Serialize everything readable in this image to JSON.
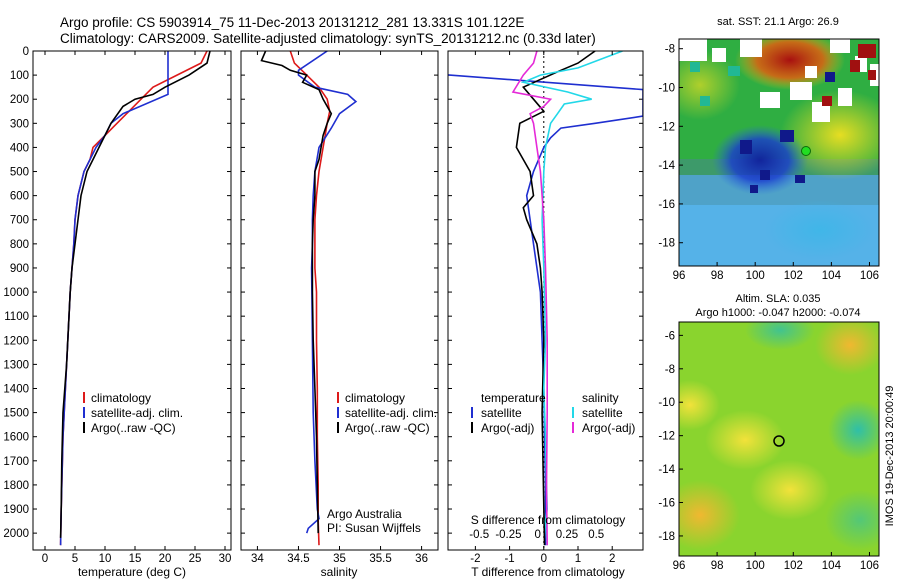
{
  "header": {
    "line1": "Argo profile: CS 5903914_75 11-Dec-2013 20131212_281 13.331S 101.122E",
    "line2": "Climatology: CARS2009. Satellite-adjusted climatology: synTS_20131212.nc (0.33d later)"
  },
  "chart_data": [
    {
      "type": "line",
      "xlabel": "temperature (deg C)",
      "xlim": [
        -2,
        31
      ],
      "ylim": [
        0,
        2070
      ],
      "xticks": [
        "0",
        "5",
        "10",
        "15",
        "20",
        "25",
        "30"
      ],
      "xtick_values": [
        0,
        5,
        10,
        15,
        20,
        25,
        30
      ],
      "yticks": [
        "0",
        "100",
        "200",
        "300",
        "400",
        "500",
        "600",
        "700",
        "800",
        "900",
        "1000",
        "1100",
        "1200",
        "1300",
        "1400",
        "1500",
        "1600",
        "1700",
        "1800",
        "1900",
        "2000"
      ],
      "ytick_values": [
        0,
        100,
        200,
        300,
        400,
        500,
        600,
        700,
        800,
        900,
        1000,
        1100,
        1200,
        1300,
        1400,
        1500,
        1600,
        1700,
        1800,
        1900,
        2000
      ],
      "legend": [
        "climatology",
        "satellite-adj. clim.",
        "Argo(..raw -QC)"
      ],
      "series": [
        {
          "name": "climatology",
          "color": "#dd1a1a",
          "x": [
            27,
            26,
            22,
            18,
            16,
            14,
            12,
            10,
            8,
            7.5,
            6.5,
            6,
            5.5,
            5,
            4.8,
            4.5,
            4.2,
            4,
            3.8,
            3.6,
            3.4,
            3.2,
            3,
            2.9,
            2.8,
            2.7,
            2.6
          ],
          "y": [
            0,
            50,
            100,
            150,
            200,
            250,
            300,
            350,
            400,
            450,
            500,
            550,
            600,
            700,
            800,
            900,
            1000,
            1100,
            1200,
            1300,
            1400,
            1500,
            1600,
            1700,
            1800,
            1900,
            2050
          ]
        },
        {
          "name": "satellite-adj. clim.",
          "color": "#1f2fd0",
          "x": [
            20.5,
            20.5,
            20.5,
            13,
            11,
            10,
            8.5,
            7.5,
            6.5,
            6,
            5.5,
            5,
            4.8,
            4.5,
            4.2,
            4,
            3.8,
            3.6,
            3.4,
            3.2,
            3,
            2.9,
            2.8,
            2.7,
            2.6
          ],
          "y": [
            0,
            100,
            180,
            260,
            300,
            350,
            400,
            450,
            500,
            550,
            600,
            700,
            800,
            900,
            1000,
            1100,
            1200,
            1300,
            1400,
            1500,
            1600,
            1700,
            1800,
            1900,
            2050
          ]
        },
        {
          "name": "Argo(..raw -QC)",
          "color": "#000000",
          "x": [
            27.5,
            27,
            24,
            20,
            18,
            15,
            13,
            11,
            9,
            8,
            7,
            6.5,
            6,
            5.5,
            5,
            4.5,
            4.2,
            4,
            3.8,
            3.6,
            3.3,
            3,
            2.8,
            2.7,
            2.6
          ],
          "y": [
            0,
            50,
            100,
            150,
            180,
            200,
            230,
            300,
            400,
            450,
            500,
            550,
            600,
            700,
            800,
            900,
            1000,
            1100,
            1200,
            1300,
            1400,
            1500,
            1700,
            1900,
            2020
          ]
        }
      ]
    },
    {
      "type": "line",
      "xlabel": "salinity",
      "xlim": [
        33.8,
        36.2
      ],
      "ylim": [
        0,
        2070
      ],
      "xticks": [
        "34",
        "34.5",
        "35",
        "35.5",
        "36"
      ],
      "xtick_values": [
        34,
        34.5,
        35,
        35.5,
        36
      ],
      "legend": [
        "climatology",
        "satellite-adj. clim.",
        "Argo(..raw -QC)"
      ],
      "annotation": [
        "Argo Australia",
        "PI: Susan Wijffels"
      ],
      "series": [
        {
          "name": "climatology",
          "color": "#dd1a1a",
          "x": [
            34.4,
            34.45,
            34.6,
            34.75,
            34.85,
            34.88,
            34.85,
            34.8,
            34.75,
            34.72,
            34.7,
            34.7,
            34.7,
            34.72,
            34.72,
            34.73,
            34.73,
            34.74,
            34.74,
            34.75
          ],
          "y": [
            0,
            50,
            100,
            150,
            200,
            250,
            300,
            400,
            500,
            600,
            700,
            800,
            900,
            1000,
            1200,
            1400,
            1600,
            1800,
            1950,
            2050
          ]
        },
        {
          "name": "satellite-adj. clim.",
          "color": "#1f2fd0",
          "x": [
            34.85,
            34.5,
            34.5,
            34.7,
            35.1,
            35.2,
            35.0,
            34.9,
            34.75,
            34.7,
            34.68,
            34.67,
            34.67,
            34.66,
            34.67,
            34.68,
            34.7,
            34.73,
            34.75,
            34.62,
            34.6
          ],
          "y": [
            0,
            80,
            100,
            150,
            180,
            210,
            260,
            320,
            400,
            500,
            600,
            700,
            800,
            900,
            1200,
            1500,
            1700,
            1900,
            1940,
            1980,
            2000
          ]
        },
        {
          "name": "Argo(..raw -QC)",
          "color": "#000000",
          "x": [
            34.1,
            34.05,
            34.3,
            34.4,
            34.6,
            34.55,
            34.75,
            34.8,
            34.9,
            34.85,
            34.8,
            34.75,
            34.7,
            34.7,
            34.68,
            34.67,
            34.67,
            34.68,
            34.7,
            34.72,
            34.73,
            34.74
          ],
          "y": [
            0,
            40,
            60,
            80,
            100,
            130,
            160,
            200,
            260,
            300,
            350,
            450,
            500,
            600,
            700,
            800,
            1000,
            1200,
            1400,
            1600,
            1800,
            2000
          ]
        }
      ]
    },
    {
      "type": "line",
      "xlabel": "T difference from climatology",
      "x2label": "S difference from climatology",
      "xlim": [
        -2.8,
        2.9
      ],
      "ylim": [
        0,
        2070
      ],
      "xticks": [
        "-2",
        "-1",
        "0",
        "1",
        "2"
      ],
      "xtick_values": [
        -2,
        -1,
        0,
        1,
        2
      ],
      "x2ticks": [
        "-0.5",
        "-0.25",
        "0",
        "0.25",
        "0.5"
      ],
      "x2tick_values": [
        -0.5,
        -0.25,
        0,
        0.25,
        0.5
      ],
      "legend_left_title": "temperature",
      "legend_right_title": "salinity",
      "legend_left": [
        "satellite",
        "Argo(-adj)"
      ],
      "legend_right": [
        "satellite",
        "Argo(-adj)"
      ],
      "series": [
        {
          "name": "satellite",
          "group": "temperature",
          "color": "#1f2fd0",
          "x": [
            -6.5,
            2.9,
            2.9,
            1.5,
            0.5,
            0.2,
            0,
            -0.3,
            -0.5,
            -0.4,
            -0.3,
            -0.1,
            0,
            0.05,
            0.05
          ],
          "y": [
            60,
            160,
            270,
            300,
            320,
            360,
            400,
            500,
            600,
            700,
            800,
            1000,
            1400,
            1800,
            2050
          ]
        },
        {
          "name": "Argo(-adj)",
          "group": "temperature",
          "color": "#000000",
          "x": [
            1.5,
            1,
            0.5,
            -0.6,
            -0.3,
            0,
            -0.7,
            -0.8,
            -0.4,
            -0.3,
            -0.6,
            -0.5,
            -0.2,
            -0.1,
            -0.05,
            0,
            -0.05,
            0.02
          ],
          "y": [
            0,
            50,
            80,
            150,
            200,
            250,
            300,
            400,
            500,
            600,
            650,
            700,
            800,
            900,
            1000,
            1200,
            1500,
            2050
          ]
        },
        {
          "name": "satellite",
          "group": "salinity",
          "color": "#22d8e8",
          "x": [
            2.3,
            1,
            -0.1,
            -0.6,
            0.7,
            1.4,
            0.6,
            0.4,
            0.2,
            0.05,
            0,
            -0.05,
            0,
            0.05,
            0,
            0.05,
            0.08,
            0.1,
            0.05,
            0.1
          ],
          "y": [
            0,
            70,
            100,
            130,
            170,
            200,
            220,
            260,
            300,
            400,
            500,
            700,
            900,
            1200,
            1400,
            1600,
            1800,
            1900,
            1950,
            2050
          ]
        },
        {
          "name": "Argo(-adj)",
          "group": "salinity",
          "color": "#e52ad8",
          "x": [
            -0.2,
            -0.3,
            -0.6,
            -0.9,
            0.2,
            0,
            -0.4,
            -0.3,
            -0.2,
            -0.1,
            0,
            0.05,
            0.1,
            0.1,
            0.08,
            0.1
          ],
          "y": [
            0,
            50,
            100,
            170,
            200,
            230,
            260,
            300,
            400,
            500,
            700,
            900,
            1200,
            1500,
            1800,
            2050
          ]
        }
      ]
    },
    {
      "type": "heatmap",
      "title": "sat. SST: 21.1  Argo: 26.9",
      "xlim": [
        96,
        106.5
      ],
      "ylim": [
        -19.2,
        -7.5
      ],
      "xticks": [
        "96",
        "98",
        "100",
        "102",
        "104",
        "106"
      ],
      "xtick_values": [
        96,
        98,
        100,
        102,
        104,
        106
      ],
      "yticks": [
        "-8",
        "-10",
        "-12",
        "-14",
        "-16",
        "-18"
      ],
      "ytick_values": [
        -8,
        -10,
        -12,
        -14,
        -16,
        -18
      ],
      "marker": {
        "lon": 101.122,
        "lat": -13.331,
        "color": "#22dd22"
      }
    },
    {
      "type": "heatmap",
      "title": "Altim. SLA: 0.035",
      "subtitle": "Argo h1000: -0.047 h2000: -0.074",
      "xlim": [
        96,
        106.5
      ],
      "ylim": [
        -19.2,
        -5.2
      ],
      "xticks": [
        "96",
        "98",
        "100",
        "102",
        "104",
        "106"
      ],
      "xtick_values": [
        96,
        98,
        100,
        102,
        104,
        106
      ],
      "yticks": [
        "-6",
        "-8",
        "-10",
        "-12",
        "-14",
        "-16",
        "-18"
      ],
      "ytick_values": [
        -6,
        -8,
        -10,
        -12,
        -14,
        -16,
        -18
      ],
      "marker": {
        "lon": 101.122,
        "lat": -13.331,
        "color": "#000000"
      }
    }
  ],
  "footer": {
    "side_text": "IMOS 19-Dec-2013 20:00:49"
  }
}
